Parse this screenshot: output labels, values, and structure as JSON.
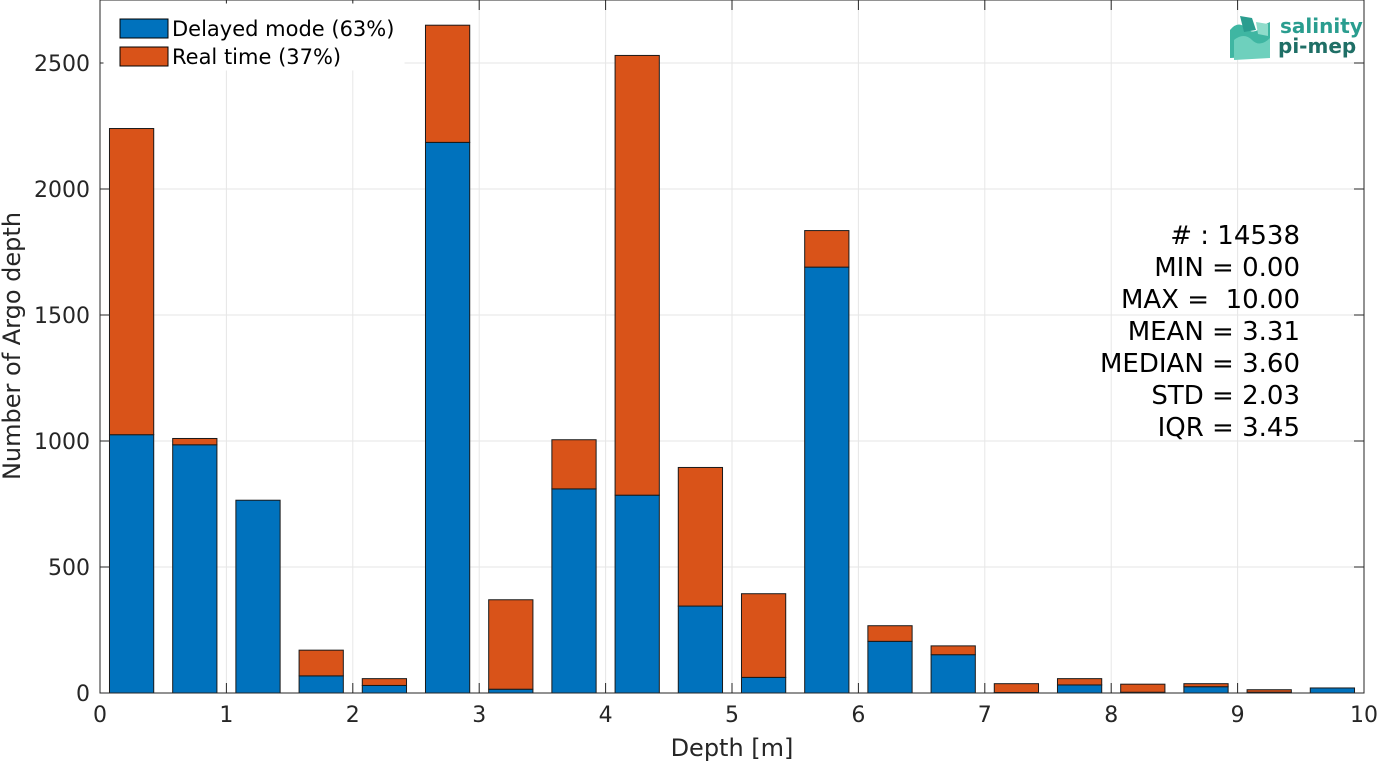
{
  "chart_data": {
    "type": "bar",
    "stacked": true,
    "title": "",
    "xlabel": "Depth [m]",
    "ylabel": "Number of Argo depth",
    "xlim": [
      0,
      10
    ],
    "ylim": [
      0,
      2750
    ],
    "xticks": [
      0,
      1,
      2,
      3,
      4,
      5,
      6,
      7,
      8,
      9,
      10
    ],
    "yticks": [
      0,
      500,
      1000,
      1500,
      2000,
      2500
    ],
    "grid": true,
    "legend_position": "top-left",
    "bin_centers": [
      0.25,
      0.75,
      1.25,
      1.75,
      2.25,
      2.75,
      3.25,
      3.75,
      4.25,
      4.75,
      5.25,
      5.75,
      6.25,
      6.75,
      7.25,
      7.75,
      8.25,
      8.75,
      9.25,
      9.75
    ],
    "bar_width": 0.35,
    "series": [
      {
        "name": "Delayed mode (63%)",
        "color": "#0072bd",
        "values": [
          1025,
          985,
          765,
          68,
          30,
          2185,
          15,
          810,
          785,
          345,
          62,
          1690,
          205,
          152,
          2,
          32,
          3,
          25,
          3,
          20
        ]
      },
      {
        "name": "Real time (37%)",
        "color": "#d95319",
        "values": [
          1215,
          25,
          0,
          102,
          27,
          465,
          355,
          195,
          1745,
          550,
          332,
          145,
          62,
          35,
          35,
          25,
          32,
          12,
          10,
          0
        ]
      }
    ],
    "annotations": {
      "count": "# : 14538",
      "min": "MIN = 0.00",
      "max": "MAX =  10.00",
      "mean": "MEAN = 3.31",
      "median": "MEDIAN = 3.60",
      "std": "STD = 2.03",
      "iqr": "IQR = 3.45"
    }
  },
  "logo": {
    "line1": "salinity",
    "line2": "pi-mep",
    "color": "#2a9d8f"
  }
}
